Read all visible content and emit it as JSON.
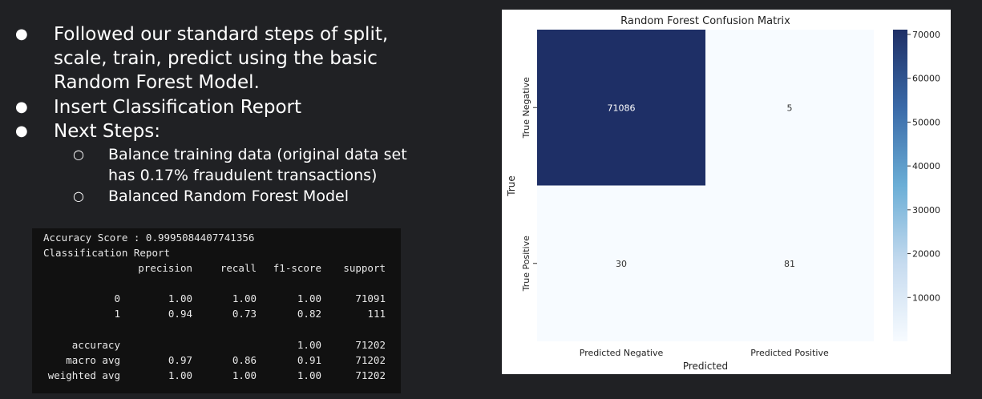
{
  "bullets": [
    {
      "text": "Followed our standard steps of split, scale, train, predict using the basic Random Forest Model."
    },
    {
      "text": "Insert Classification Report"
    },
    {
      "text": "Next Steps:"
    }
  ],
  "sub_bullets": [
    {
      "text": "Balance training data (original data set has 0.17% fraudulent transactions)"
    },
    {
      "text": "Balanced Random Forest Model"
    }
  ],
  "report": {
    "accuracy_line": "Accuracy Score : 0.9995084407741356",
    "title": "Classification Report",
    "headers": [
      "precision",
      "recall",
      "f1-score",
      "support"
    ],
    "rows": [
      {
        "label": "0",
        "precision": "1.00",
        "recall": "1.00",
        "f1": "1.00",
        "support": "71091"
      },
      {
        "label": "1",
        "precision": "0.94",
        "recall": "0.73",
        "f1": "0.82",
        "support": "111"
      },
      {
        "label": "accuracy",
        "precision": "",
        "recall": "",
        "f1": "1.00",
        "support": "71202"
      },
      {
        "label": "macro avg",
        "precision": "0.97",
        "recall": "0.86",
        "f1": "0.91",
        "support": "71202"
      },
      {
        "label": "weighted avg",
        "precision": "1.00",
        "recall": "1.00",
        "f1": "1.00",
        "support": "71202"
      }
    ]
  },
  "chart_data": {
    "type": "heatmap",
    "title": "Random Forest Confusion Matrix",
    "xlabel": "Predicted",
    "ylabel": "True",
    "x_categories": [
      "Predicted Negative",
      "Predicted Positive"
    ],
    "y_categories": [
      "True Negative",
      "True Positive"
    ],
    "values": [
      [
        71086,
        5
      ],
      [
        30,
        81
      ]
    ],
    "colorbar_ticks": [
      10000,
      20000,
      30000,
      40000,
      50000,
      60000,
      70000
    ],
    "colormap": "Blues",
    "vmin": 5,
    "vmax": 71086
  },
  "colors": {
    "background": "#202124",
    "console_bg": "#111111",
    "heat_high": "#1e2f66",
    "heat_low": "#f7fbff"
  }
}
